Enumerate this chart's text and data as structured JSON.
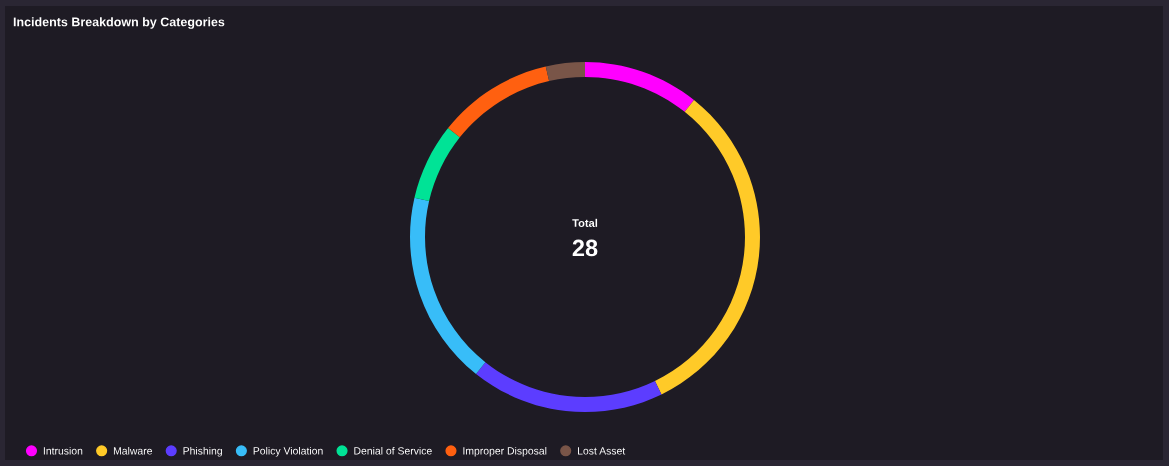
{
  "chart_data": {
    "type": "donut",
    "title": "Incidents Breakdown by Categories",
    "categories": [
      "Intrusion",
      "Malware",
      "Phishing",
      "Policy Violation",
      "Denial of Service",
      "Improper Disposal",
      "Lost Asset"
    ],
    "values": [
      10.7,
      32.1,
      17.9,
      17.9,
      7.1,
      10.7,
      3.6
    ],
    "colors": [
      "#ff00ff",
      "#ffca28",
      "#5c3dff",
      "#38bdf8",
      "#00e396",
      "#ff6010",
      "#795548"
    ],
    "annotations": [
      "Total",
      "28"
    ],
    "legend": "bottom left"
  }
}
